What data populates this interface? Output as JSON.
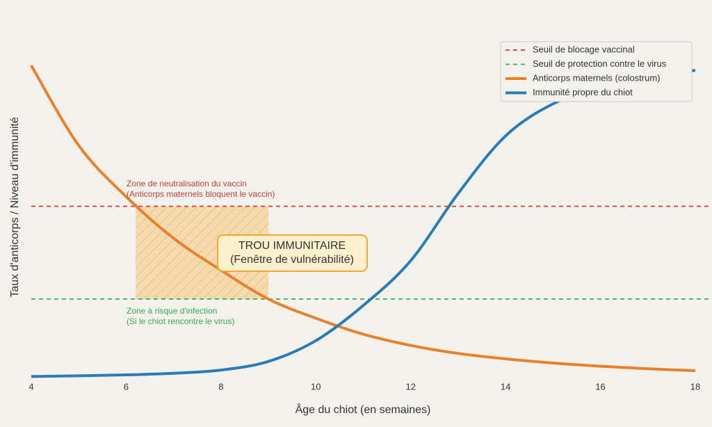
{
  "chart_data": {
    "type": "line",
    "x_label": "Âge du chiot (en semaines)",
    "y_label": "Taux d'anticorps / Niveau d'immunité",
    "x": [
      4,
      5,
      6,
      7,
      8,
      9,
      10,
      11,
      12,
      13,
      14,
      15,
      16,
      17,
      18
    ],
    "xlim": [
      4,
      18
    ],
    "xticks": [
      4,
      6,
      8,
      10,
      12,
      14,
      16,
      18
    ],
    "ylim": [
      0,
      100
    ],
    "series": [
      {
        "name": "Anticorps maternels (colostrum)",
        "color": "#e8812a",
        "values": [
          98,
          73,
          57,
          44,
          34,
          25,
          19,
          14,
          10.5,
          8,
          6.3,
          5,
          4,
          3.2,
          2.6
        ]
      },
      {
        "name": "Immunité propre du chiot",
        "color": "#2b7bb5",
        "values": [
          0.8,
          1,
          1.3,
          1.8,
          2.8,
          5.5,
          12,
          23,
          37,
          58,
          76,
          86,
          91,
          94.5,
          96.5
        ]
      }
    ],
    "reference_lines": [
      {
        "name": "Seuil de blocage vaccinal",
        "color": "#d9383a",
        "value": 54
      },
      {
        "name": "Seuil de protection contre le virus",
        "color": "#3aa85a",
        "value": 25
      }
    ],
    "shaded_zone": {
      "x": [
        6.2,
        9
      ],
      "color": "#f5c77e"
    },
    "annotations": {
      "vaccine_zone": [
        "Zone de neutralisation du vaccin",
        "(Anticorps maternels bloquent le vaccin)"
      ],
      "infection_zone": [
        "Zone à risque d'infection",
        "(Si le chiot rencontre le virus)"
      ],
      "gap": [
        "TROU IMMUNITAIRE",
        "(Fenêtre de vulnérabilité)"
      ]
    },
    "legend": "upper right"
  }
}
